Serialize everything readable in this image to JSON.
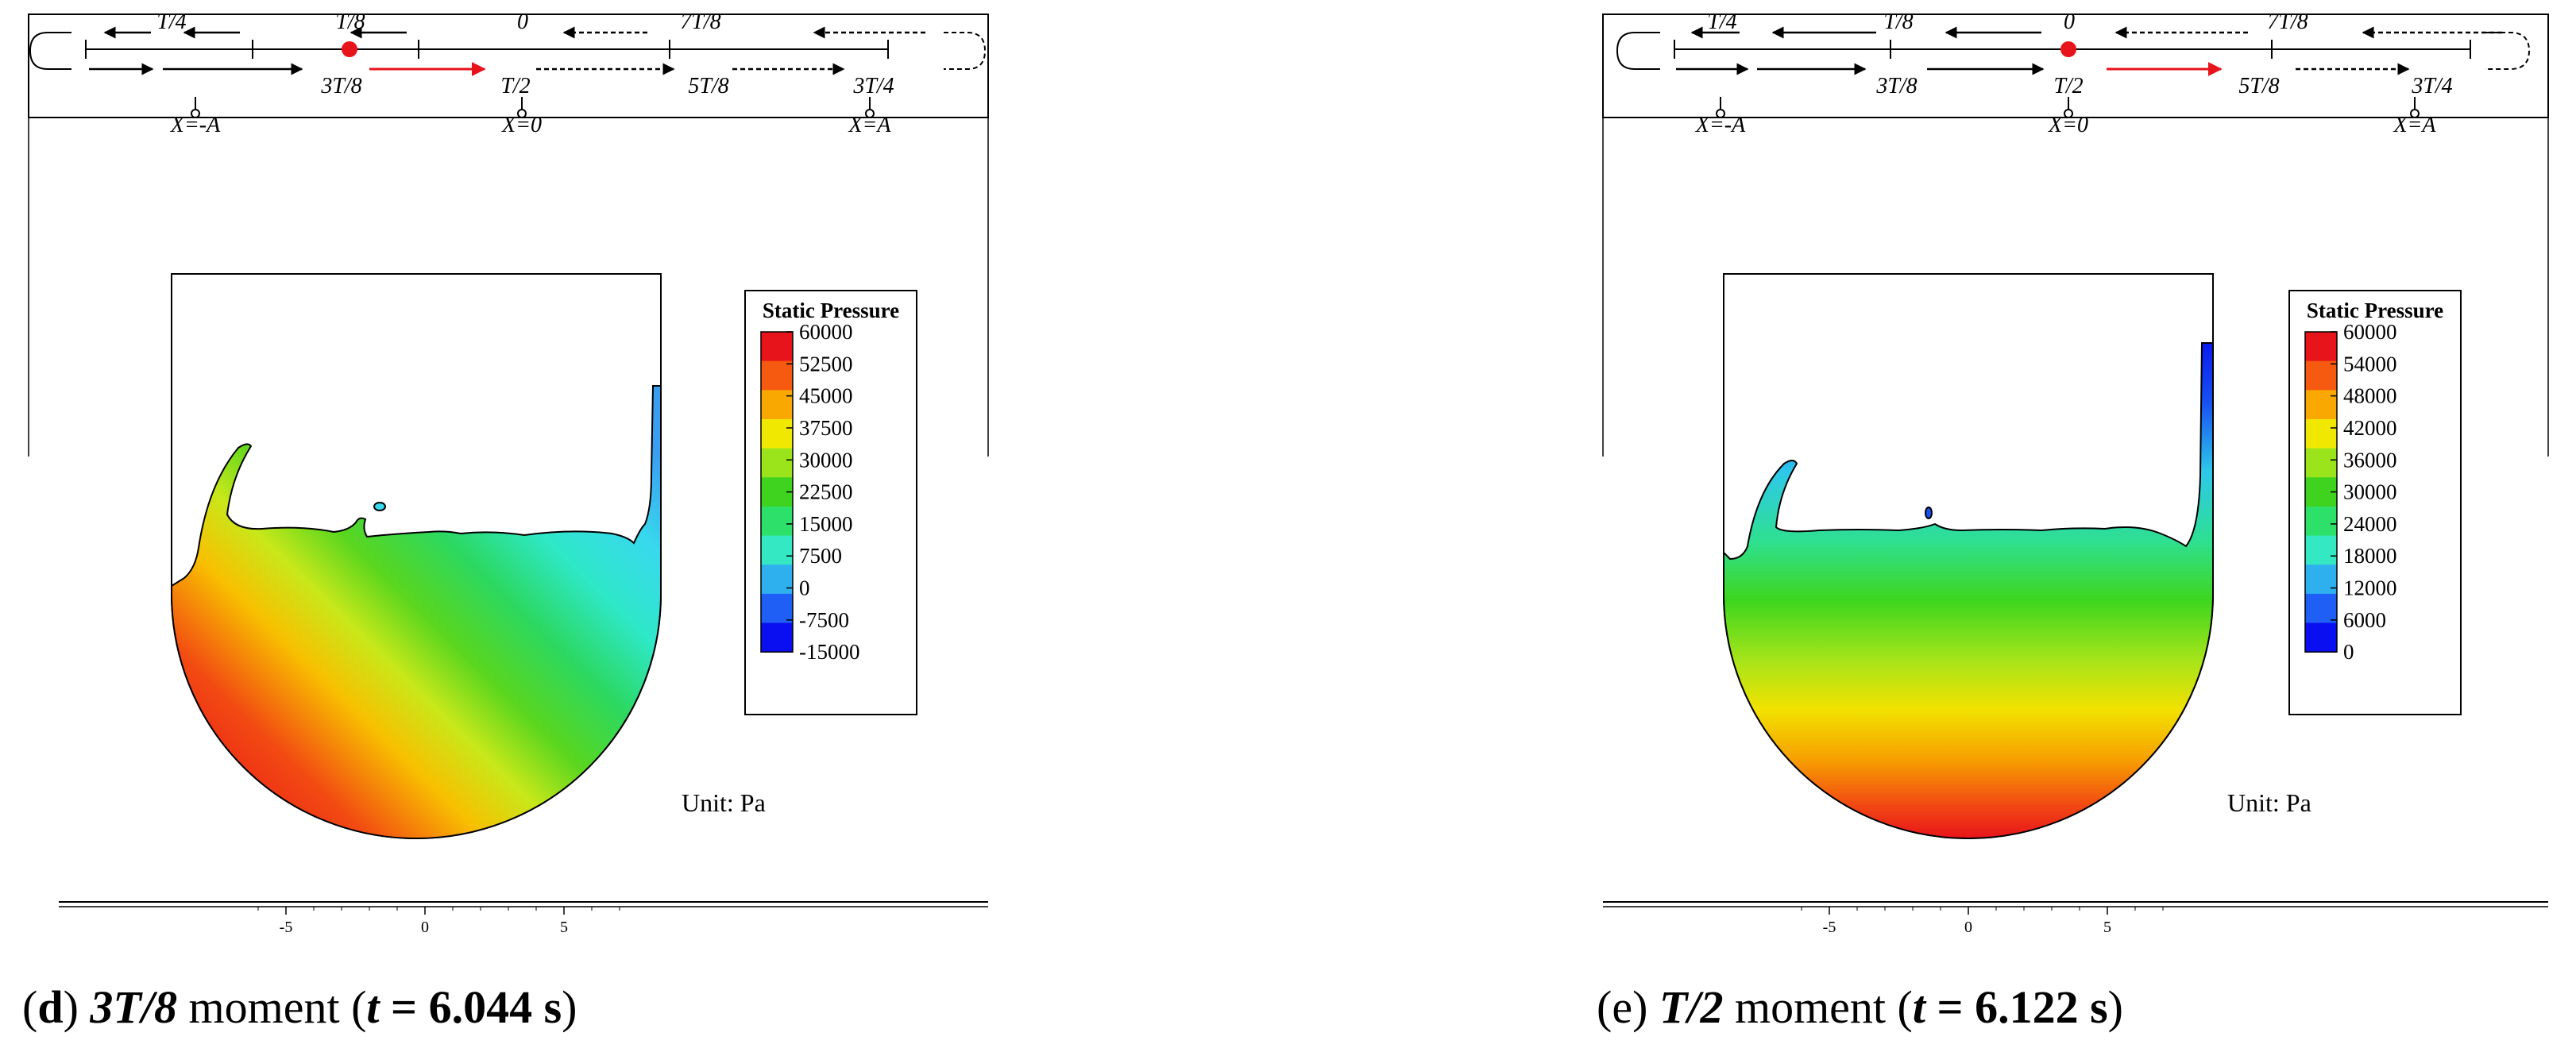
{
  "panels": [
    {
      "id": "d",
      "caption": {
        "letter": "d",
        "fraction": "3T/8",
        "moment_word": "moment",
        "time_value": "6.044",
        "time_unit": "s"
      },
      "timeline": {
        "top_labels": [
          "T/4",
          "T/8",
          "0",
          "7T/8"
        ],
        "bottom_labels": [
          "3T/8",
          "T/2",
          "5T/8",
          "3T/4"
        ],
        "current": "3T/8",
        "positions": [
          "X=-A",
          "X=0",
          "X=A"
        ]
      },
      "legend": {
        "title": "Static Pressure",
        "values": [
          "60000",
          "52500",
          "45000",
          "37500",
          "30000",
          "22500",
          "15000",
          "7500",
          "0",
          "-7500",
          "-15000"
        ]
      },
      "unit_label": "Unit: Pa",
      "axis_ticks": [
        "-5",
        "0",
        "5"
      ]
    },
    {
      "id": "e",
      "caption": {
        "letter": "e",
        "fraction": "T/2",
        "moment_word": "moment",
        "time_value": "6.122",
        "time_unit": "s"
      },
      "timeline": {
        "top_labels": [
          "T/4",
          "T/8",
          "0",
          "7T/8"
        ],
        "bottom_labels": [
          "3T/8",
          "T/2",
          "5T/8",
          "3T/4"
        ],
        "current": "T/2",
        "positions": [
          "X=-A",
          "X=0",
          "X=A"
        ]
      },
      "legend": {
        "title": "Static Pressure",
        "values": [
          "60000",
          "54000",
          "48000",
          "42000",
          "36000",
          "30000",
          "24000",
          "18000",
          "12000",
          "6000",
          "0"
        ]
      },
      "unit_label": "Unit: Pa",
      "axis_ticks": [
        "-5",
        "0",
        "5"
      ]
    }
  ],
  "colors": {
    "marker": "#e8141b",
    "current_arrow": "#e8141b",
    "scale": [
      "#e8141b",
      "#f55a10",
      "#f8a800",
      "#f0e800",
      "#9be31a",
      "#3fd21e",
      "#2de06a",
      "#35e8c4",
      "#2eb0ef",
      "#1f5ff5",
      "#0a0ff2"
    ]
  }
}
